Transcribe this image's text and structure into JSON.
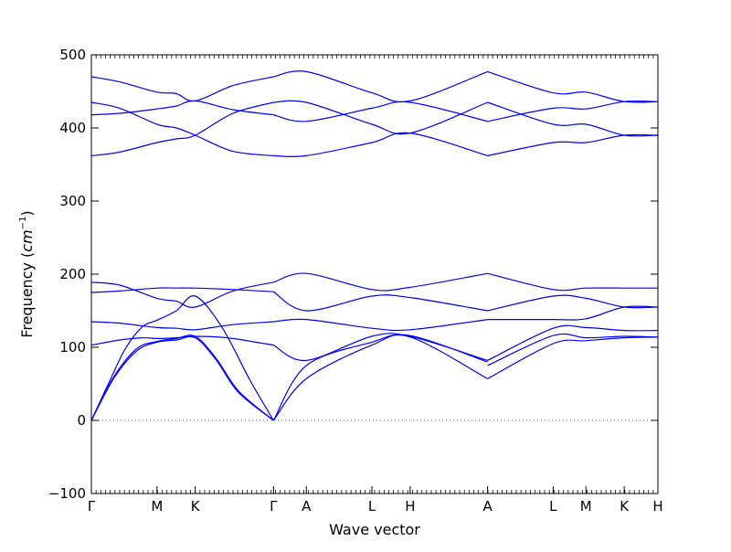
{
  "chart_data": {
    "type": "line",
    "xlabel": "Wave vector",
    "ylabel_text": "Frequency",
    "ylabel_unit": "cm",
    "ylabel_unit_exp": "−1",
    "ylim": [
      -100,
      500
    ],
    "yticks": [
      -100,
      0,
      100,
      200,
      300,
      400,
      500
    ],
    "x_range": [
      0,
      1
    ],
    "grid": false,
    "line_color": "#0000ff",
    "zero_line_color": "#555555",
    "x_ticks": [
      {
        "label": "Γ",
        "x": 0.0
      },
      {
        "label": "M",
        "x": 0.1158
      },
      {
        "label": "K",
        "x": 0.1833
      },
      {
        "label": "Γ",
        "x": 0.3215
      },
      {
        "label": "A",
        "x": 0.3794
      },
      {
        "label": "L",
        "x": 0.4952
      },
      {
        "label": "H",
        "x": 0.5627
      },
      {
        "label": "A",
        "x": 0.6994
      },
      {
        "label": "L",
        "x": 0.8151
      },
      {
        "label": "M",
        "x": 0.873
      },
      {
        "label": "K",
        "x": 0.9405
      },
      {
        "label": "H",
        "x": 1.0
      }
    ],
    "series": [
      {
        "x": [
          0,
          0.04,
          0.08,
          0.1158,
          0.15,
          0.1833,
          0.22,
          0.26,
          0.3215
        ],
        "values": [
          0,
          60,
          98,
          108,
          112,
          115,
          85,
          40,
          0
        ]
      },
      {
        "x": [
          0,
          0.04,
          0.08,
          0.1158,
          0.15,
          0.1833,
          0.22,
          0.26,
          0.3215
        ],
        "values": [
          0,
          58,
          95,
          107,
          110,
          113,
          83,
          38,
          0
        ]
      },
      {
        "x": [
          0,
          0.03,
          0.06,
          0.09,
          0.1158,
          0.15,
          0.1833,
          0.23,
          0.28,
          0.3215
        ],
        "values": [
          0,
          50,
          98,
          128,
          137,
          150,
          170,
          128,
          55,
          0
        ]
      },
      {
        "x": [
          0,
          0.05,
          0.09,
          0.1158,
          0.15,
          0.1833,
          0.24,
          0.29,
          0.3215
        ],
        "values": [
          103,
          110,
          113,
          112,
          113,
          115,
          113,
          107,
          103
        ]
      },
      {
        "x": [
          0,
          0.05,
          0.1158,
          0.15,
          0.1833,
          0.25,
          0.3215
        ],
        "values": [
          135,
          133,
          127,
          126,
          124,
          131,
          135
        ]
      },
      {
        "x": [
          0,
          0.05,
          0.1158,
          0.15,
          0.1833,
          0.25,
          0.3215
        ],
        "values": [
          175,
          177,
          181,
          181,
          181,
          179,
          176
        ]
      },
      {
        "x": [
          0,
          0.05,
          0.1158,
          0.15,
          0.1833,
          0.25,
          0.3215
        ],
        "values": [
          189,
          185,
          167,
          163,
          155,
          177,
          189
        ]
      },
      {
        "x": [
          0,
          0.05,
          0.1158,
          0.15,
          0.1833,
          0.25,
          0.3215
        ],
        "values": [
          362,
          367,
          380,
          385,
          390,
          420,
          435
        ]
      },
      {
        "x": [
          0,
          0.05,
          0.1158,
          0.15,
          0.1833,
          0.25,
          0.3215
        ],
        "values": [
          435,
          427,
          405,
          400,
          390,
          368,
          362
        ]
      },
      {
        "x": [
          0,
          0.05,
          0.1158,
          0.15,
          0.1833,
          0.25,
          0.3215
        ],
        "values": [
          418,
          420,
          426,
          430,
          437,
          425,
          418
        ]
      },
      {
        "x": [
          0,
          0.05,
          0.1158,
          0.15,
          0.1833,
          0.25,
          0.3215
        ],
        "values": [
          470,
          463,
          449,
          447,
          437,
          458,
          470
        ]
      },
      {
        "x": [
          0.3215,
          0.3794,
          0.4952,
          0.5627,
          0.6994
        ],
        "values": [
          0,
          75,
          107,
          116,
          80
        ]
      },
      {
        "x": [
          0.3215,
          0.3794,
          0.4952,
          0.5627,
          0.6994
        ],
        "values": [
          0,
          57,
          103,
          114,
          57
        ]
      },
      {
        "x": [
          0.3215,
          0.3794,
          0.4952,
          0.5627,
          0.6994
        ],
        "values": [
          103,
          82,
          115,
          115,
          82
        ]
      },
      {
        "x": [
          0.3215,
          0.3794,
          0.4952,
          0.5627,
          0.6994
        ],
        "values": [
          135,
          138,
          126,
          124,
          138
        ]
      },
      {
        "x": [
          0.3215,
          0.3794,
          0.4952,
          0.5627,
          0.6994
        ],
        "values": [
          176,
          150,
          170,
          168,
          150
        ]
      },
      {
        "x": [
          0.3215,
          0.3794,
          0.4952,
          0.5627,
          0.6994
        ],
        "values": [
          189,
          201,
          179,
          182,
          201
        ]
      },
      {
        "x": [
          0.3215,
          0.3794,
          0.4952,
          0.5627,
          0.6994
        ],
        "values": [
          362,
          362,
          380,
          393,
          362
        ]
      },
      {
        "x": [
          0.3215,
          0.3794,
          0.4952,
          0.5627,
          0.6994
        ],
        "values": [
          418,
          409,
          427,
          435,
          409
        ]
      },
      {
        "x": [
          0.3215,
          0.3794,
          0.4952,
          0.5627,
          0.6994
        ],
        "values": [
          435,
          435,
          405,
          393,
          435
        ]
      },
      {
        "x": [
          0.3215,
          0.3794,
          0.4952,
          0.5627,
          0.6994
        ],
        "values": [
          470,
          477,
          448,
          437,
          477
        ]
      },
      {
        "x": [
          0.6994,
          0.8151,
          0.873,
          0.9405,
          1.0
        ],
        "values": [
          57,
          105,
          109,
          113,
          114
        ]
      },
      {
        "x": [
          0.6994,
          0.8151,
          0.873,
          0.9405,
          1.0
        ],
        "values": [
          75,
          116,
          113,
          115,
          114
        ]
      },
      {
        "x": [
          0.6994,
          0.8151,
          0.873,
          0.9405,
          1.0
        ],
        "values": [
          82,
          126,
          127,
          123,
          123
        ]
      },
      {
        "x": [
          0.6994,
          0.8151,
          0.873,
          0.9405,
          1.0
        ],
        "values": [
          138,
          138,
          139,
          155,
          155
        ]
      },
      {
        "x": [
          0.6994,
          0.8151,
          0.873,
          0.9405,
          1.0
        ],
        "values": [
          150,
          170,
          167,
          155,
          155
        ]
      },
      {
        "x": [
          0.6994,
          0.8151,
          0.873,
          0.9405,
          1.0
        ],
        "values": [
          201,
          179,
          181,
          181,
          181
        ]
      },
      {
        "x": [
          0.6994,
          0.8151,
          0.873,
          0.9405,
          1.0
        ],
        "values": [
          362,
          380,
          380,
          390,
          390
        ]
      },
      {
        "x": [
          0.6994,
          0.8151,
          0.873,
          0.9405,
          1.0
        ],
        "values": [
          409,
          427,
          426,
          436,
          436
        ]
      },
      {
        "x": [
          0.6994,
          0.8151,
          0.873,
          0.9405,
          1.0
        ],
        "values": [
          435,
          405,
          405,
          390,
          390
        ]
      },
      {
        "x": [
          0.6994,
          0.8151,
          0.873,
          0.9405,
          1.0
        ],
        "values": [
          477,
          448,
          449,
          436,
          436
        ]
      }
    ]
  }
}
